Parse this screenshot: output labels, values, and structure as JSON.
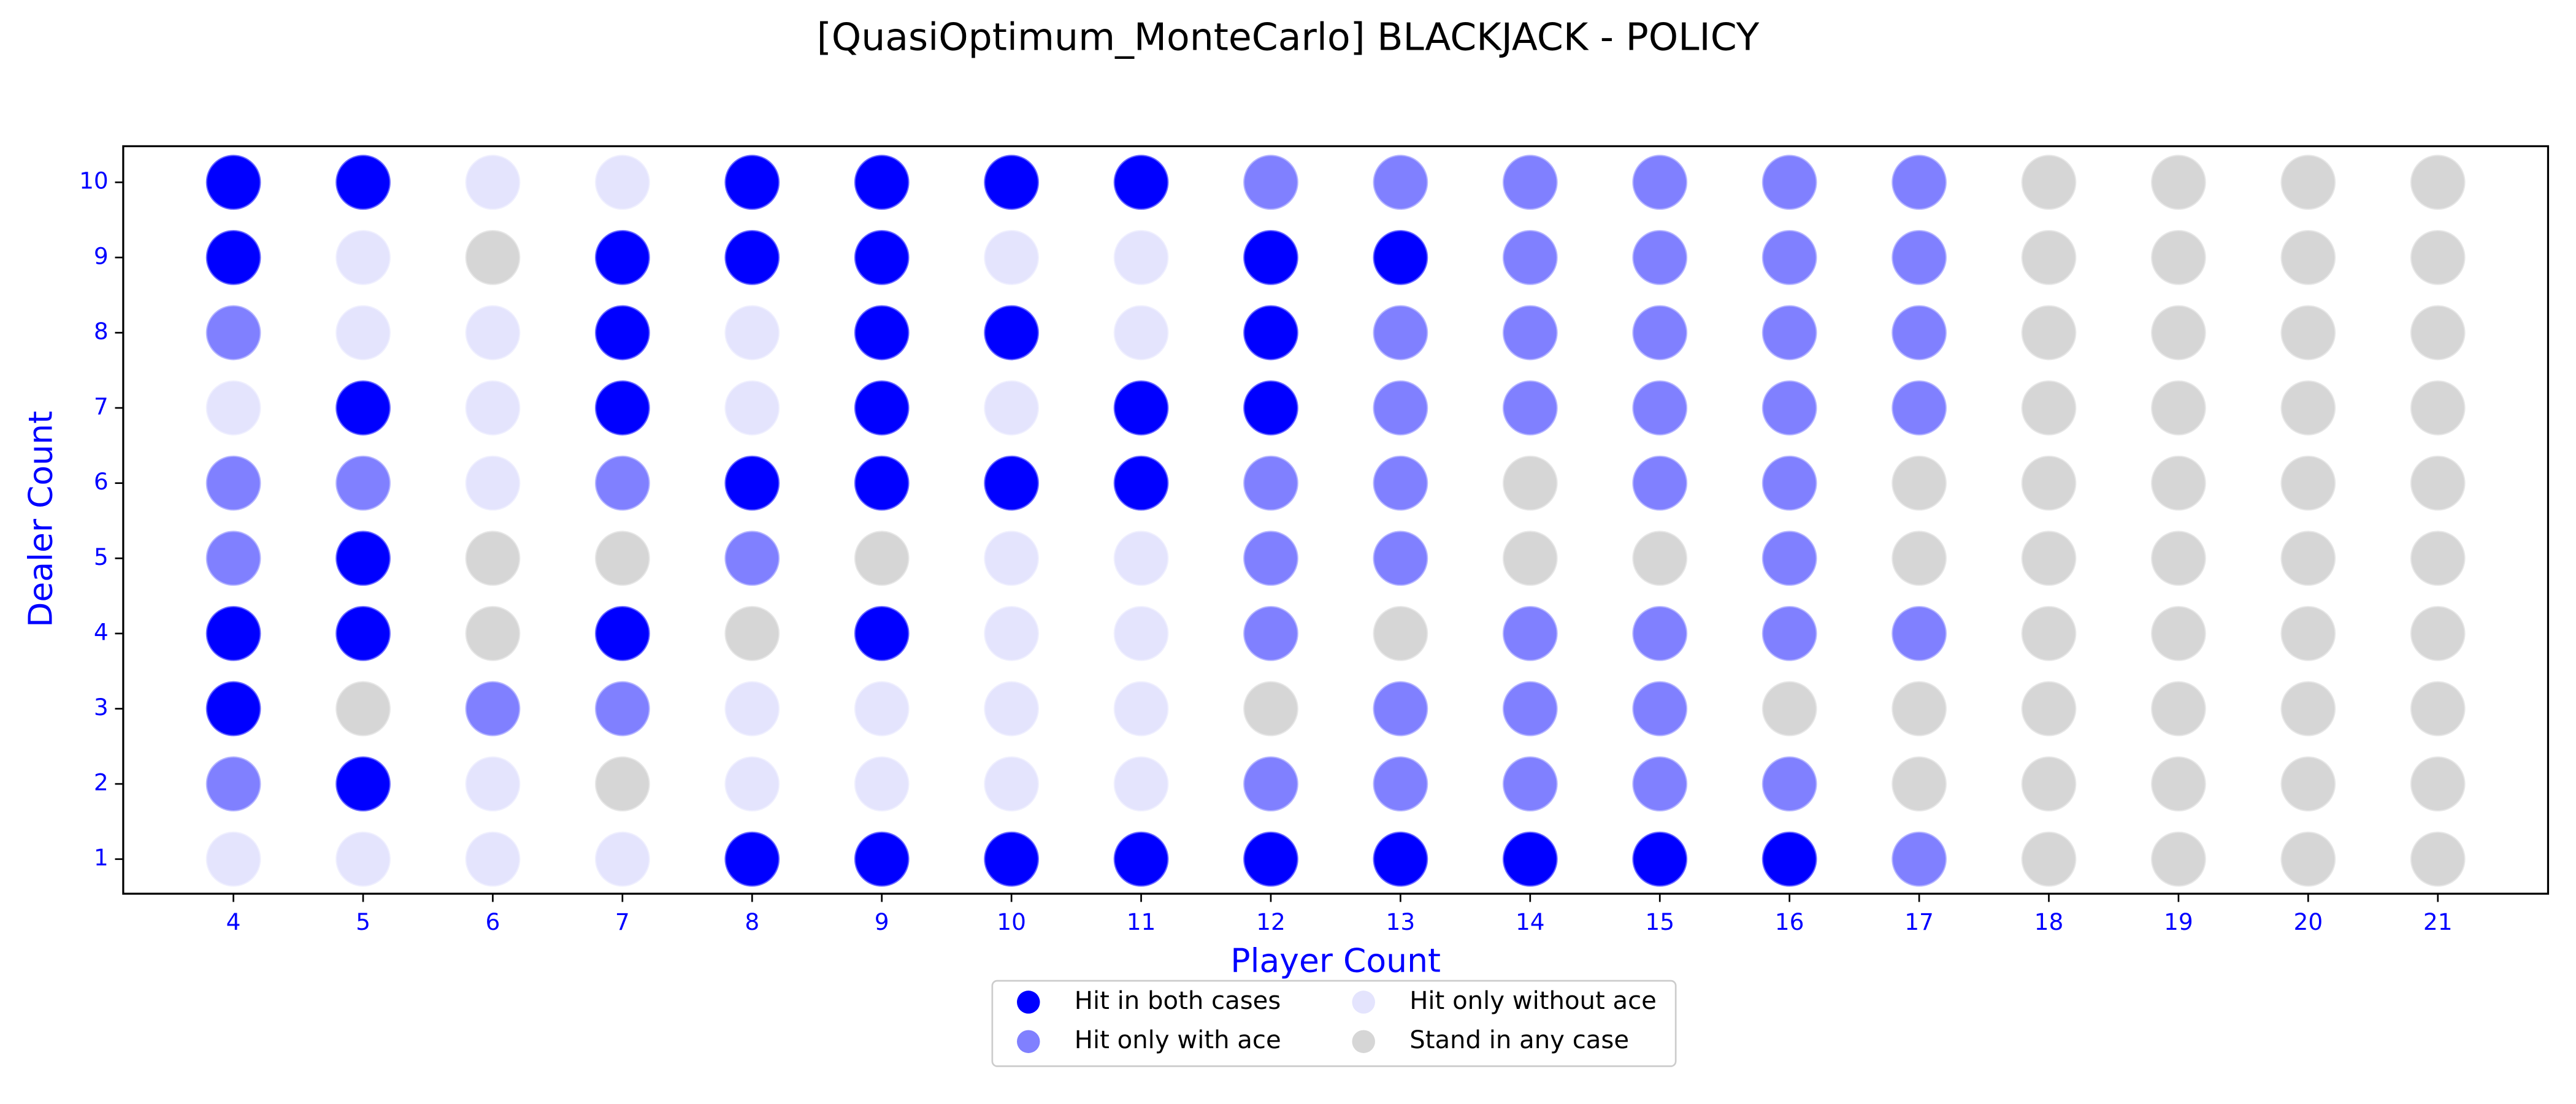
{
  "chart_data": {
    "type": "scatter",
    "title": "[QuasiOptimum_MonteCarlo] BLACKJACK - POLICY",
    "x_label": "Player Count",
    "y_label": "Dealer Count",
    "xlim": [
      3.15,
      21.85
    ],
    "ylim": [
      0.54,
      10.48
    ],
    "xticks": [
      4,
      5,
      6,
      7,
      8,
      9,
      10,
      11,
      12,
      13,
      14,
      15,
      16,
      17,
      18,
      19,
      20,
      21
    ],
    "yticks": [
      1,
      2,
      3,
      4,
      5,
      6,
      7,
      8,
      9,
      10
    ],
    "grid": false,
    "legend": "below",
    "series": [
      {
        "name": "Hit in both cases",
        "color": "#0000ff",
        "x": [
          4,
          5,
          8,
          9,
          10,
          11,
          4,
          7,
          8,
          9,
          12,
          13,
          7,
          9,
          10,
          12,
          5,
          7,
          9,
          11,
          12,
          8,
          9,
          10,
          11,
          5,
          4,
          5,
          7,
          9,
          4,
          5,
          8,
          9,
          10,
          11,
          12,
          13,
          14,
          15,
          16
        ],
        "y": [
          10,
          10,
          10,
          10,
          10,
          10,
          9,
          9,
          9,
          9,
          9,
          9,
          8,
          8,
          8,
          8,
          7,
          7,
          7,
          7,
          7,
          6,
          6,
          6,
          6,
          5,
          4,
          4,
          4,
          4,
          3,
          2,
          1,
          1,
          1,
          1,
          1,
          1,
          1,
          1,
          1
        ]
      },
      {
        "name": "Hit only with ace",
        "color": "#8080ff",
        "x": [
          12,
          13,
          14,
          15,
          16,
          17,
          14,
          15,
          16,
          17,
          4,
          13,
          14,
          15,
          16,
          17,
          13,
          14,
          15,
          16,
          17,
          4,
          5,
          7,
          12,
          13,
          15,
          16,
          4,
          8,
          12,
          13,
          16,
          12,
          14,
          15,
          16,
          17,
          6,
          7,
          13,
          14,
          15,
          4,
          12,
          13,
          14,
          15,
          16,
          17
        ],
        "y": [
          10,
          10,
          10,
          10,
          10,
          10,
          9,
          9,
          9,
          9,
          8,
          8,
          8,
          8,
          8,
          8,
          7,
          7,
          7,
          7,
          7,
          6,
          6,
          6,
          6,
          6,
          6,
          6,
          5,
          5,
          5,
          5,
          5,
          4,
          4,
          4,
          4,
          4,
          3,
          3,
          3,
          3,
          3,
          2,
          2,
          2,
          2,
          2,
          2,
          1
        ]
      },
      {
        "name": "Hit only without ace",
        "color": "#e4e4fd",
        "x": [
          6,
          7,
          5,
          10,
          11,
          5,
          6,
          8,
          11,
          4,
          6,
          8,
          10,
          6,
          10,
          11,
          10,
          11,
          8,
          9,
          10,
          11,
          6,
          8,
          9,
          10,
          11,
          4,
          5,
          6,
          7
        ],
        "y": [
          10,
          10,
          9,
          9,
          9,
          8,
          8,
          8,
          8,
          7,
          7,
          7,
          7,
          6,
          5,
          5,
          4,
          4,
          3,
          3,
          3,
          3,
          2,
          2,
          2,
          2,
          2,
          1,
          1,
          1,
          1
        ]
      },
      {
        "name": "Stand in any case",
        "color": "#d6d6d6",
        "x": [
          18,
          19,
          20,
          21,
          6,
          18,
          19,
          20,
          21,
          18,
          19,
          20,
          21,
          18,
          19,
          20,
          21,
          14,
          17,
          18,
          19,
          20,
          21,
          6,
          7,
          9,
          14,
          15,
          17,
          18,
          19,
          20,
          21,
          6,
          8,
          13,
          18,
          19,
          20,
          21,
          5,
          12,
          16,
          17,
          18,
          19,
          20,
          21,
          7,
          17,
          18,
          19,
          20,
          21,
          18,
          19,
          20,
          21
        ],
        "y": [
          10,
          10,
          10,
          10,
          9,
          9,
          9,
          9,
          9,
          8,
          8,
          8,
          8,
          7,
          7,
          7,
          7,
          6,
          6,
          6,
          6,
          6,
          6,
          5,
          5,
          5,
          5,
          5,
          5,
          5,
          5,
          5,
          5,
          4,
          4,
          4,
          4,
          4,
          4,
          4,
          3,
          3,
          3,
          3,
          3,
          3,
          3,
          3,
          2,
          2,
          2,
          2,
          2,
          2,
          1,
          1,
          1,
          1
        ]
      }
    ]
  }
}
